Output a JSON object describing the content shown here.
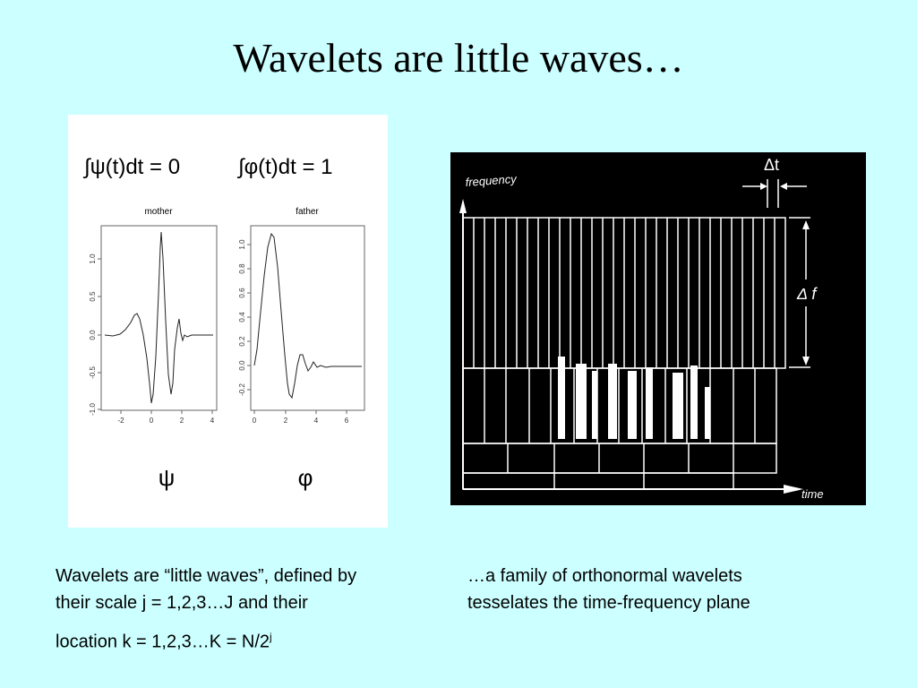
{
  "slide": {
    "title": "Wavelets are little waves…",
    "left_panel": {
      "equation_mother_lhs": "∫ψ(t)dt = 0",
      "equation_father_lhs": "∫φ(t)dt = 1",
      "mother_label": "mother",
      "father_label": "father",
      "psi_symbol": "ψ",
      "phi_symbol": "φ",
      "mother_yticks": [
        "1.0",
        "0.5",
        "0.0",
        "-0.5",
        "-1.0"
      ],
      "mother_xticks": [
        "-2",
        "0",
        "2",
        "4"
      ],
      "father_yticks": [
        "1.0",
        "0.8",
        "0.6",
        "0.4",
        "0.2",
        "0.0",
        "-0.2"
      ],
      "father_xticks": [
        "0",
        "2",
        "4",
        "6"
      ]
    },
    "right_panel": {
      "frequency_label": "frequency",
      "time_label": "time",
      "delta_t_label": "Δt",
      "delta_f_label": "Δ f"
    },
    "caption_left_line1": "Wavelets are “little waves”, defined by",
    "caption_left_line2": "their scale j = 1,2,3…J and their",
    "caption_left_line3": "location k = 1,2,3…K = N/2",
    "caption_left_sup": "j",
    "caption_right_line1": "…a family of orthonormal wavelets",
    "caption_right_line2": "tesselates the time-frequency plane"
  }
}
